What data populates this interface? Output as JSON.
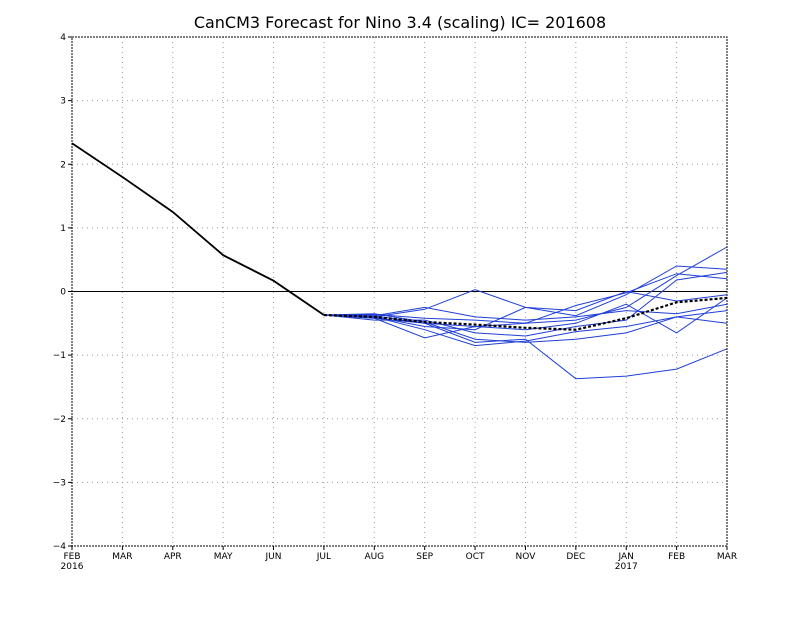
{
  "chart_data": {
    "type": "line",
    "title": "CanCM3 Forecast for Nino 3.4 (scaling) IC= 201608",
    "xlabel": "",
    "ylabel": "",
    "categories": [
      "FEB",
      "MAR",
      "APR",
      "MAY",
      "JUN",
      "JUL",
      "AUG",
      "SEP",
      "OCT",
      "NOV",
      "DEC",
      "JAN",
      "FEB",
      "MAR"
    ],
    "year_labels": [
      {
        "index": 0,
        "label": "2016"
      },
      {
        "index": 11,
        "label": "2017"
      }
    ],
    "ylim": [
      -4,
      4
    ],
    "yticks": [
      "4",
      "3",
      "2",
      "1",
      "0",
      "−1",
      "−2",
      "−3",
      "−4"
    ],
    "grid": true,
    "zero_line": true,
    "colors": {
      "observed": "#000000",
      "members": "#1f3fd6",
      "ensemble_mean": "#000000",
      "grid": "#9a9a9a"
    },
    "observed": {
      "values": [
        2.33,
        1.8,
        1.25,
        0.57,
        0.17,
        -0.37
      ]
    },
    "ensemble_mean": {
      "start_index": 5,
      "values": [
        -0.37,
        -0.4,
        -0.48,
        -0.52,
        -0.57,
        -0.6,
        -0.42,
        -0.17,
        -0.1
      ]
    },
    "members": [
      {
        "values": [
          -0.37,
          -0.42,
          -0.73,
          -0.55,
          -0.5,
          -0.45,
          -0.25,
          0.25,
          0.7
        ]
      },
      {
        "values": [
          -0.37,
          -0.45,
          -0.45,
          -0.65,
          -0.7,
          -0.55,
          -0.45,
          0.18,
          0.3
        ]
      },
      {
        "values": [
          -0.37,
          -0.4,
          -0.28,
          0.03,
          -0.25,
          -0.38,
          -0.05,
          0.4,
          0.35
        ]
      },
      {
        "values": [
          -0.37,
          -0.4,
          -0.6,
          -0.85,
          -0.78,
          -0.63,
          -0.55,
          -0.4,
          -0.5
        ]
      },
      {
        "values": [
          -0.37,
          -0.38,
          -0.5,
          -0.55,
          -0.6,
          -0.5,
          -0.2,
          -0.65,
          -0.1
        ]
      },
      {
        "values": [
          -0.37,
          -0.35,
          -0.48,
          -0.75,
          -0.8,
          -0.75,
          -0.65,
          -0.4,
          -0.3
        ]
      },
      {
        "values": [
          -0.37,
          -0.42,
          -0.5,
          -0.8,
          -0.75,
          -1.37,
          -1.33,
          -1.22,
          -0.9
        ]
      },
      {
        "values": [
          -0.37,
          -0.38,
          -0.25,
          -0.4,
          -0.45,
          -0.4,
          -0.3,
          -0.35,
          -0.2
        ]
      },
      {
        "values": [
          -0.37,
          -0.36,
          -0.42,
          -0.45,
          -0.5,
          -0.22,
          -0.02,
          0.28,
          0.2
        ]
      },
      {
        "values": [
          -0.37,
          -0.4,
          -0.55,
          -0.6,
          -0.25,
          -0.3,
          0.0,
          -0.15,
          -0.05
        ]
      }
    ]
  }
}
